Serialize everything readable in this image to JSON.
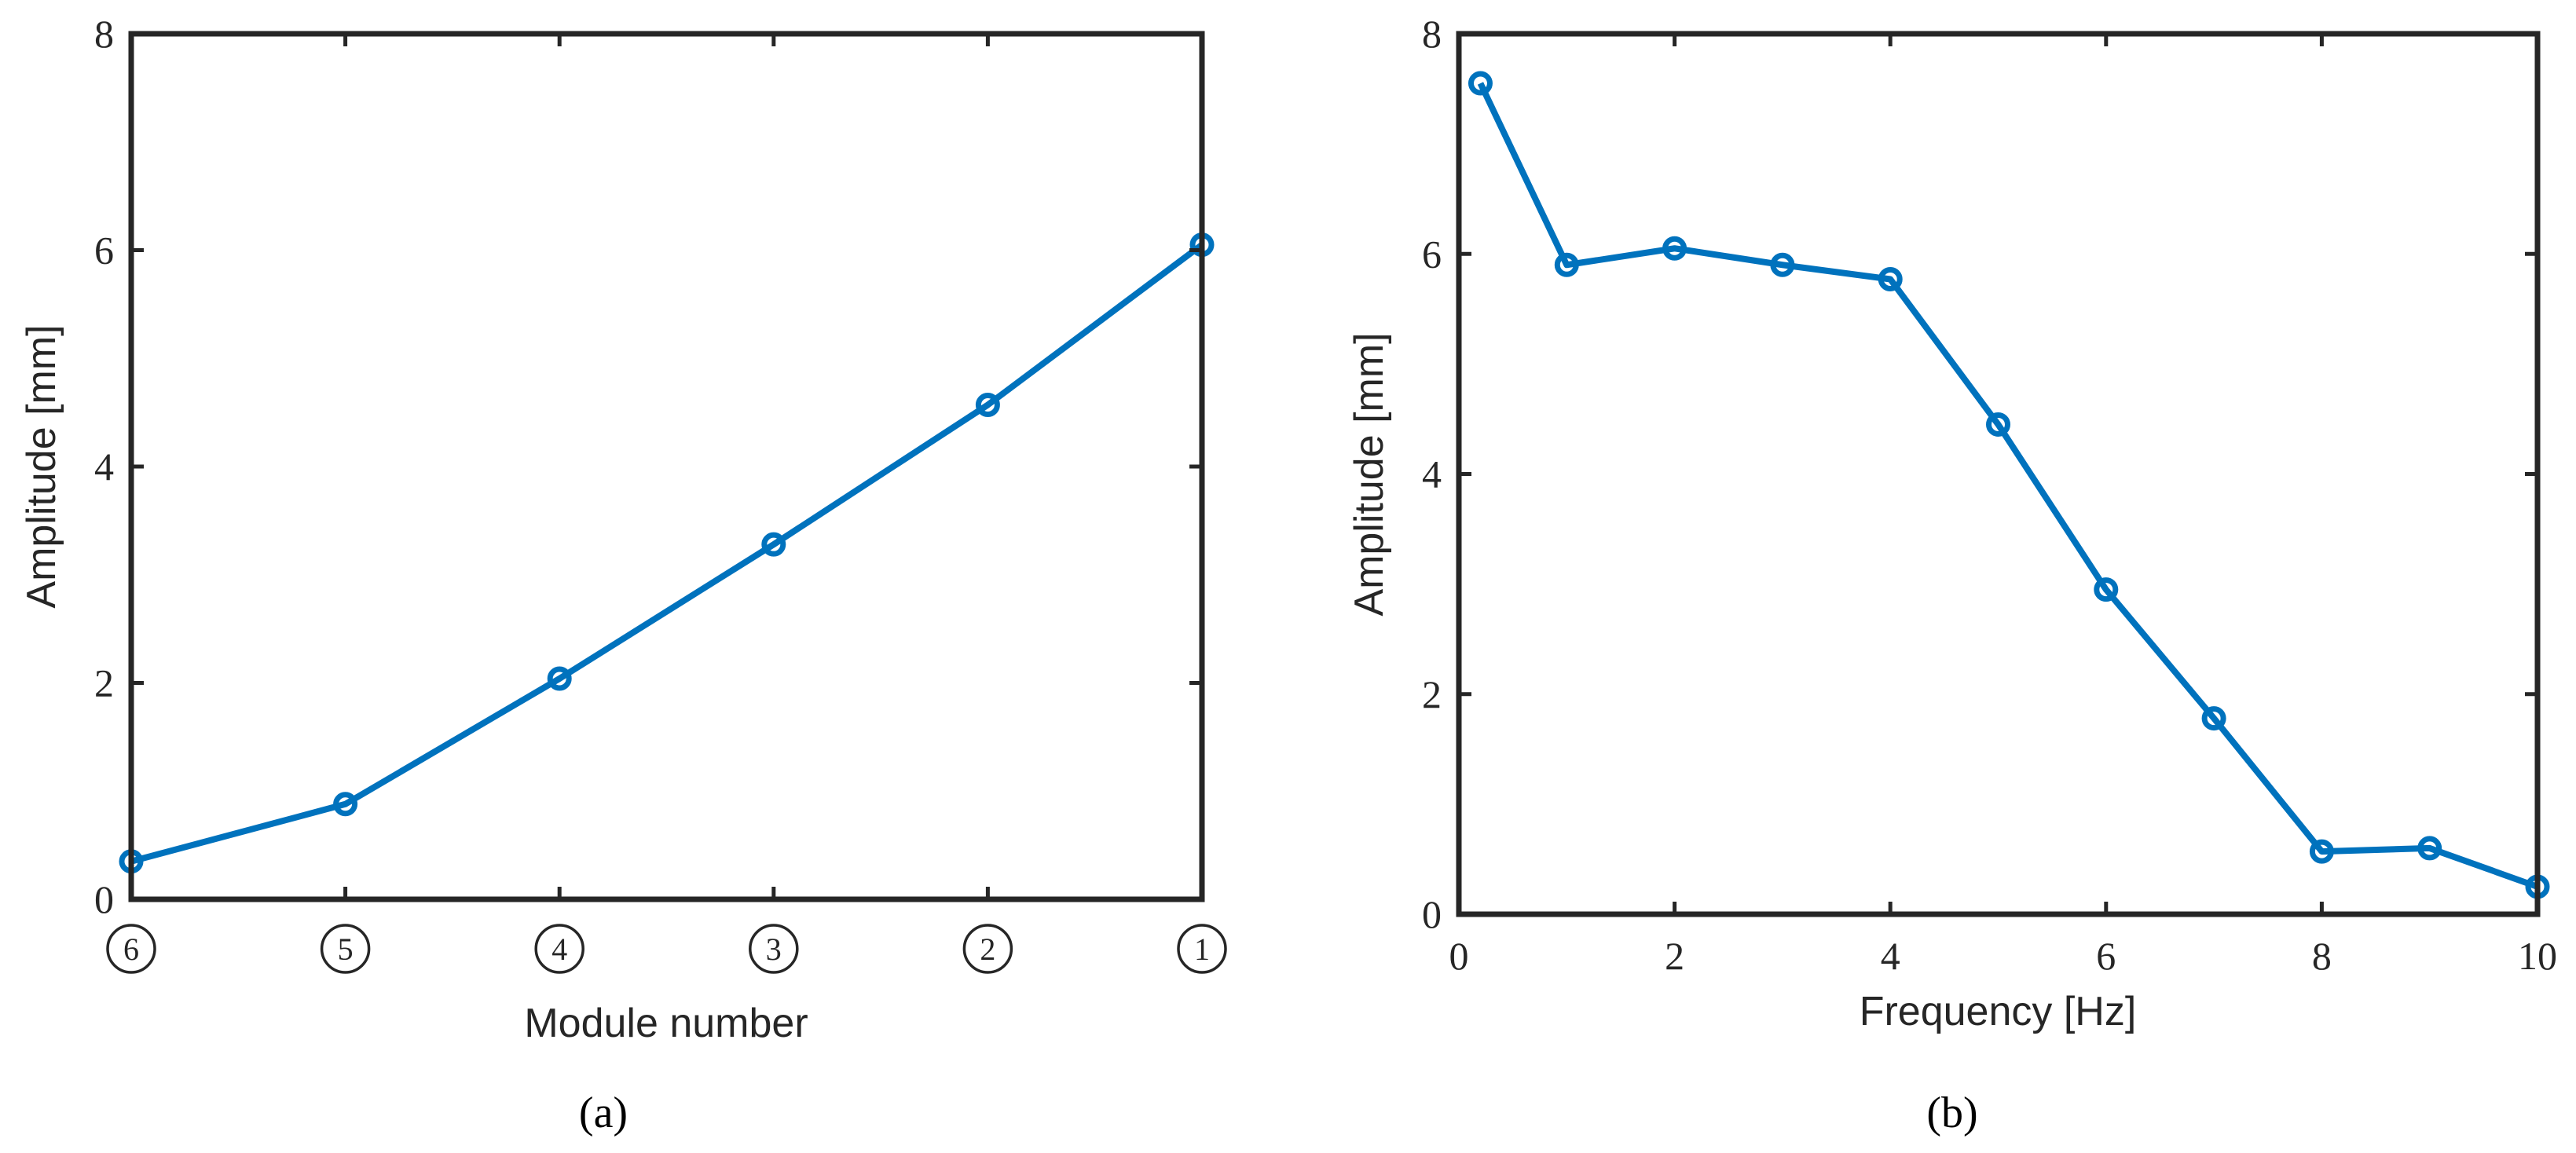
{
  "colors": {
    "series": "#0072BD",
    "axes": "#262626"
  },
  "chart_data": [
    {
      "type": "line",
      "panel_label": "(a)",
      "xlabel": "Module number",
      "ylabel": "Amplitude [mm]",
      "categories": [
        "6",
        "5",
        "4",
        "3",
        "2",
        "1"
      ],
      "category_style": "circled",
      "ylim": [
        0,
        8
      ],
      "yticks": [
        0,
        2,
        4,
        6,
        8
      ],
      "grid": false,
      "marker": "circle",
      "series": [
        {
          "values": [
            0.35,
            0.88,
            2.04,
            3.28,
            4.57,
            6.05
          ]
        }
      ]
    },
    {
      "type": "line",
      "panel_label": "(b)",
      "xlabel": "Frequency [Hz]",
      "ylabel": "Amplitude [mm]",
      "xlim": [
        0,
        10
      ],
      "xticks": [
        0,
        2,
        4,
        6,
        8,
        10
      ],
      "ylim": [
        0,
        8
      ],
      "yticks": [
        0,
        2,
        4,
        6,
        8
      ],
      "grid": false,
      "marker": "circle",
      "series": [
        {
          "x": [
            0.2,
            1,
            2,
            3,
            4,
            5,
            6,
            7,
            8,
            9,
            10
          ],
          "y": [
            7.55,
            5.9,
            6.05,
            5.9,
            5.77,
            4.45,
            2.95,
            1.78,
            0.57,
            0.6,
            0.25
          ]
        }
      ]
    }
  ]
}
